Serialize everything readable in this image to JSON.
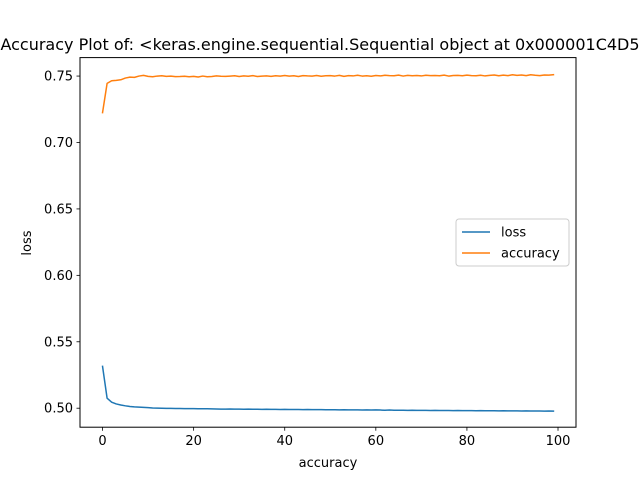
{
  "chart_data": {
    "type": "line",
    "title": "Accuracy Plot of: <keras.engine.sequential.Sequential object at 0x000001C4D5",
    "xlabel": "accuracy",
    "ylabel": "loss",
    "xlim": [
      -4.95,
      103.95
    ],
    "ylim": [
      0.4857,
      0.7639
    ],
    "xticks": [
      0,
      20,
      40,
      60,
      80,
      100
    ],
    "yticks": [
      0.5,
      0.55,
      0.6,
      0.65,
      0.7,
      0.75
    ],
    "xtick_labels": [
      "0",
      "20",
      "40",
      "60",
      "80",
      "100"
    ],
    "ytick_labels": [
      "0.50",
      "0.55",
      "0.60",
      "0.65",
      "0.70",
      "0.75"
    ],
    "legend_position": "center-right",
    "grid": false,
    "series": [
      {
        "name": "loss",
        "color": "#1f77b4",
        "values": [
          0.5315,
          0.5075,
          0.5045,
          0.5032,
          0.5024,
          0.5018,
          0.5013,
          0.501,
          0.5008,
          0.5006,
          0.5004,
          0.5002,
          0.5001,
          0.5,
          0.4999,
          0.4999,
          0.4998,
          0.4998,
          0.4997,
          0.4997,
          0.4997,
          0.4996,
          0.4996,
          0.4996,
          0.4995,
          0.4994,
          0.4993,
          0.4993,
          0.4994,
          0.4993,
          0.4993,
          0.4992,
          0.4993,
          0.4992,
          0.4992,
          0.4991,
          0.4992,
          0.4991,
          0.4991,
          0.499,
          0.4991,
          0.499,
          0.499,
          0.499,
          0.4989,
          0.499,
          0.4989,
          0.4989,
          0.4989,
          0.4988,
          0.4988,
          0.4988,
          0.4987,
          0.4988,
          0.4987,
          0.4987,
          0.4987,
          0.4986,
          0.4987,
          0.4986,
          0.4987,
          0.4986,
          0.4985,
          0.4986,
          0.4985,
          0.4985,
          0.4985,
          0.4984,
          0.4985,
          0.4984,
          0.4984,
          0.4984,
          0.4983,
          0.4984,
          0.4983,
          0.4983,
          0.4983,
          0.4982,
          0.4983,
          0.4982,
          0.4982,
          0.4982,
          0.4981,
          0.4982,
          0.4981,
          0.4981,
          0.4981,
          0.498,
          0.4981,
          0.498,
          0.498,
          0.498,
          0.4979,
          0.498,
          0.4979,
          0.4979,
          0.4979,
          0.4978,
          0.4979,
          0.4978
        ]
      },
      {
        "name": "accuracy",
        "color": "#ff7f0e",
        "values": [
          0.7225,
          0.7445,
          0.7465,
          0.7468,
          0.7472,
          0.7485,
          0.7492,
          0.749,
          0.75,
          0.7505,
          0.7498,
          0.7495,
          0.75,
          0.7502,
          0.7498,
          0.75,
          0.7496,
          0.7497,
          0.7499,
          0.7495,
          0.7498,
          0.7493,
          0.75,
          0.7495,
          0.7497,
          0.7501,
          0.7499,
          0.7498,
          0.75,
          0.7502,
          0.7497,
          0.7501,
          0.7499,
          0.7503,
          0.7497,
          0.75,
          0.7501,
          0.7498,
          0.7502,
          0.75,
          0.7504,
          0.75,
          0.7502,
          0.7497,
          0.7503,
          0.7501,
          0.75,
          0.7504,
          0.7499,
          0.7502,
          0.7503,
          0.75,
          0.7505,
          0.7498,
          0.7503,
          0.7501,
          0.7506,
          0.75,
          0.7502,
          0.7499,
          0.7504,
          0.7501,
          0.7506,
          0.7503,
          0.7502,
          0.7507,
          0.75,
          0.7505,
          0.7502,
          0.7504,
          0.7501,
          0.7506,
          0.7503,
          0.7504,
          0.7502,
          0.7507,
          0.75,
          0.7504,
          0.7505,
          0.7502,
          0.7507,
          0.7503,
          0.7502,
          0.7506,
          0.7501,
          0.7505,
          0.7508,
          0.7502,
          0.7507,
          0.7503,
          0.751,
          0.7505,
          0.7508,
          0.7503,
          0.751,
          0.7506,
          0.7503,
          0.7508,
          0.7507,
          0.751
        ]
      }
    ]
  }
}
